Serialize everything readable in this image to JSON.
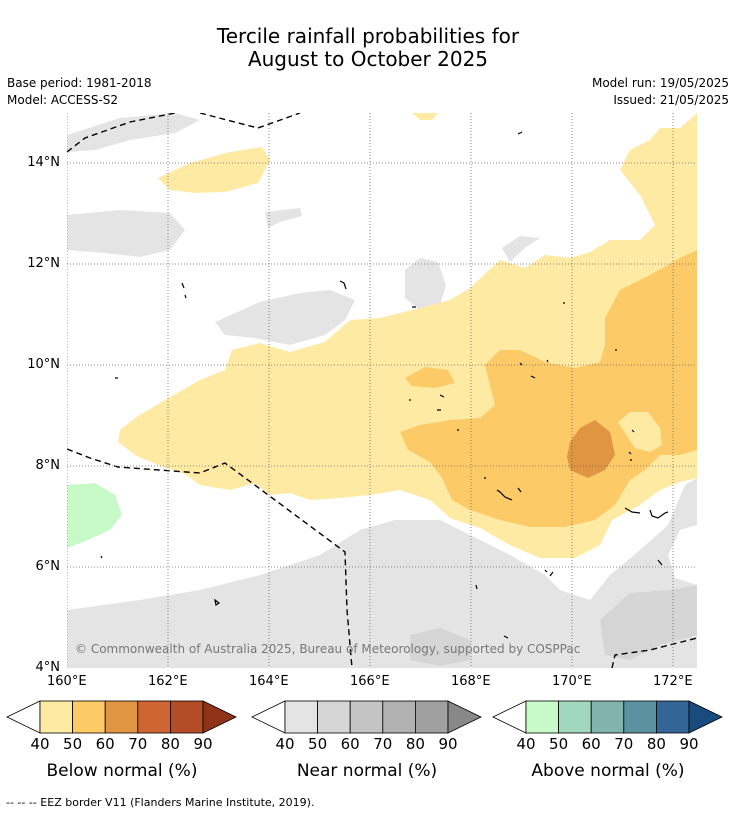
{
  "title_line1": "Tercile rainfall probabilities for",
  "title_line2": "August to October 2025",
  "base_period": "Base period: 1981-2018",
  "model": "Model: ACCESS-S2",
  "model_run": "Model run: 19/05/2025",
  "issued": "Issued: 21/05/2025",
  "copyright": "© Commonwealth of Australia 2025, Bureau of Meteorology, supported by COSPPac",
  "lat_ticks": [
    "14°N",
    "12°N",
    "10°N",
    "8°N",
    "6°N",
    "4°N"
  ],
  "lon_ticks": [
    "160°E",
    "162°E",
    "164°E",
    "166°E",
    "168°E",
    "170°E",
    "172°E"
  ],
  "colorbars": [
    {
      "label": "Below normal (%)",
      "ticks": [
        "40",
        "50",
        "60",
        "70",
        "80",
        "90"
      ],
      "colors": [
        "#ffeaa3",
        "#fdca68",
        "#e09543",
        "#ce6533",
        "#b34d28",
        "#8f3319"
      ]
    },
    {
      "label": "Near normal (%)",
      "ticks": [
        "40",
        "50",
        "60",
        "70",
        "80",
        "90"
      ],
      "colors": [
        "#e4e4e4",
        "#d5d5d5",
        "#c4c4c4",
        "#b1b1b1",
        "#a0a0a0",
        "#888888"
      ]
    },
    {
      "label": "Above normal (%)",
      "ticks": [
        "40",
        "50",
        "60",
        "70",
        "80",
        "90"
      ],
      "colors": [
        "#c8fac8",
        "#a1d7bc",
        "#80b4ad",
        "#5a92a0",
        "#336697",
        "#1a4b7e"
      ]
    }
  ],
  "footnote": "--  --  -- EEZ border V11 (Flanders Marine Institute, 2019)."
}
